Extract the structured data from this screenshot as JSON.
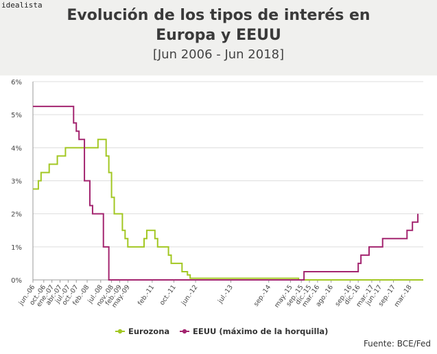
{
  "brand": "idealista",
  "title_line1": "Evolución de los tipos de interés en",
  "title_line2": "Europa y EEUU",
  "subtitle": "[Jun 2006 - Jun 2018]",
  "source": "Fuente: BCE/Fed",
  "colors": {
    "eurozona": "#a2c722",
    "eeuu": "#a3246f",
    "axis": "#999999",
    "grid": "#dddddd",
    "text": "#444444"
  },
  "chart_data": {
    "type": "line",
    "step": true,
    "title": "Evolución de los tipos de interés en Europa y EEUU",
    "subtitle": "[Jun 2006 - Jun 2018]",
    "xlabel": "",
    "ylabel": "",
    "ylim": [
      0,
      6
    ],
    "yticks": [
      "0%",
      "1%",
      "2%",
      "3%",
      "4%",
      "5%",
      "6%"
    ],
    "xlim_month_index": [
      0,
      144
    ],
    "x_unit": "months since Jun 2006",
    "xticks": [
      {
        "m": 0,
        "label": "jun.-06"
      },
      {
        "m": 4,
        "label": "oct.-06"
      },
      {
        "m": 7,
        "label": "ene.-07"
      },
      {
        "m": 10,
        "label": "abr.-07"
      },
      {
        "m": 13,
        "label": "jul.-07"
      },
      {
        "m": 16,
        "label": "oct.-07"
      },
      {
        "m": 20,
        "label": "feb.-08"
      },
      {
        "m": 25,
        "label": "jul.-08"
      },
      {
        "m": 29,
        "label": "nov.-08"
      },
      {
        "m": 32,
        "label": "feb.-09"
      },
      {
        "m": 35,
        "label": "may.-09"
      },
      {
        "m": 44,
        "label": "feb.-11"
      },
      {
        "m": 52,
        "label": "oct.-11"
      },
      {
        "m": 60,
        "label": "jun.-12"
      },
      {
        "m": 73,
        "label": "jul.-13"
      },
      {
        "m": 87,
        "label": "sep.-14"
      },
      {
        "m": 95,
        "label": "may.-15"
      },
      {
        "m": 99,
        "label": "sep.-15"
      },
      {
        "m": 102,
        "label": "dic.-15"
      },
      {
        "m": 105,
        "label": "mar.-16"
      },
      {
        "m": 110,
        "label": "ago.-16"
      },
      {
        "m": 117,
        "label": "sep.-16"
      },
      {
        "m": 120,
        "label": "dic.-16"
      },
      {
        "m": 125,
        "label": "mar.-17"
      },
      {
        "m": 128,
        "label": "jun.-17"
      },
      {
        "m": 133,
        "label": "sep.-17"
      },
      {
        "m": 139,
        "label": "mar.-18"
      }
    ],
    "legend": "bottom",
    "series": [
      {
        "name": "Eurozona",
        "points": [
          [
            0,
            2.75
          ],
          [
            2,
            3.0
          ],
          [
            3,
            3.25
          ],
          [
            6,
            3.5
          ],
          [
            9,
            3.75
          ],
          [
            12,
            4.0
          ],
          [
            24,
            4.25
          ],
          [
            27,
            3.75
          ],
          [
            28,
            3.25
          ],
          [
            29,
            2.5
          ],
          [
            30,
            2.0
          ],
          [
            33,
            1.5
          ],
          [
            34,
            1.25
          ],
          [
            35,
            1.0
          ],
          [
            41,
            1.25
          ],
          [
            42,
            1.5
          ],
          [
            45,
            1.25
          ],
          [
            46,
            1.0
          ],
          [
            50,
            0.75
          ],
          [
            51,
            0.5
          ],
          [
            55,
            0.25
          ],
          [
            57,
            0.15
          ],
          [
            58,
            0.05
          ],
          [
            98,
            0.0
          ],
          [
            144,
            0.0
          ]
        ]
      },
      {
        "name": "EEUU (máximo de la horquilla)",
        "points": [
          [
            0,
            5.25
          ],
          [
            15,
            4.75
          ],
          [
            16,
            4.5
          ],
          [
            17,
            4.25
          ],
          [
            19,
            3.0
          ],
          [
            21,
            2.25
          ],
          [
            22,
            2.0
          ],
          [
            26,
            1.0
          ],
          [
            28,
            0.0
          ],
          [
            100,
            0.25
          ],
          [
            120,
            0.5
          ],
          [
            121,
            0.75
          ],
          [
            124,
            1.0
          ],
          [
            129,
            1.25
          ],
          [
            138,
            1.5
          ],
          [
            140,
            1.75
          ],
          [
            142,
            2.0
          ]
        ]
      }
    ]
  }
}
